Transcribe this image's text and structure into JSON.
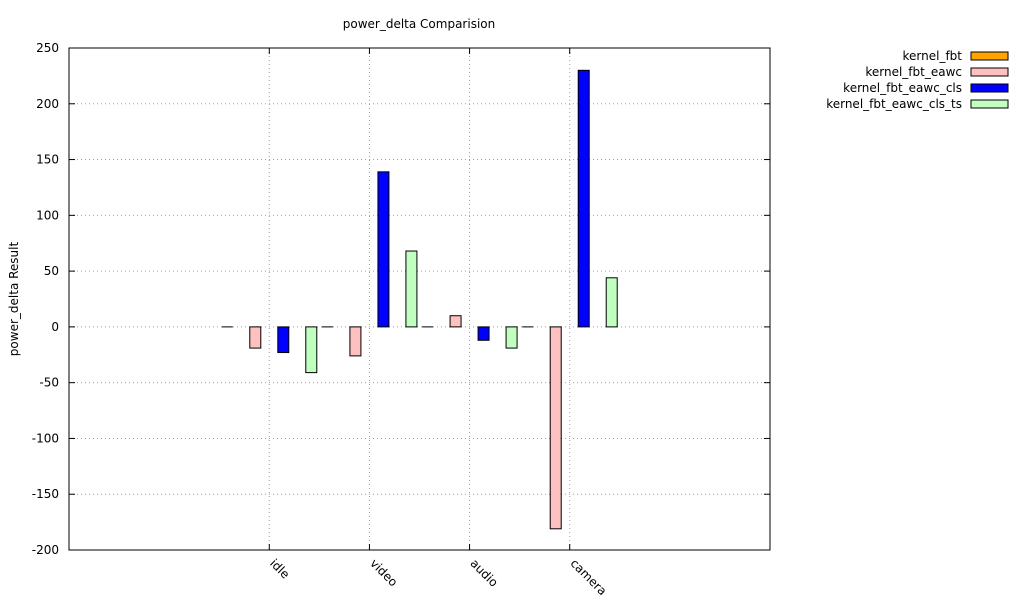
{
  "chart_data": {
    "type": "bar",
    "title": "power_delta Comparision",
    "xlabel": "",
    "ylabel": "power_delta Result",
    "categories": [
      "idle",
      "video",
      "audio",
      "camera"
    ],
    "ylim": [
      -200,
      250
    ],
    "yticks": [
      -200,
      -150,
      -100,
      -50,
      0,
      50,
      100,
      150,
      200,
      250
    ],
    "grid": true,
    "legend_position": "top-right, outside plot",
    "series": [
      {
        "name": "kernel_fbt",
        "color": "#ffa500",
        "values": [
          0,
          0,
          0,
          0
        ]
      },
      {
        "name": "kernel_fbt_eawc",
        "color": "#ffc0c0",
        "values": [
          -19,
          -26,
          10,
          -181
        ]
      },
      {
        "name": "kernel_fbt_eawc_cls",
        "color": "#0000ff",
        "values": [
          -23,
          139,
          -12,
          230
        ]
      },
      {
        "name": "kernel_fbt_eawc_cls_ts",
        "color": "#c0ffc0",
        "values": [
          -41,
          68,
          -19,
          44
        ]
      }
    ]
  }
}
